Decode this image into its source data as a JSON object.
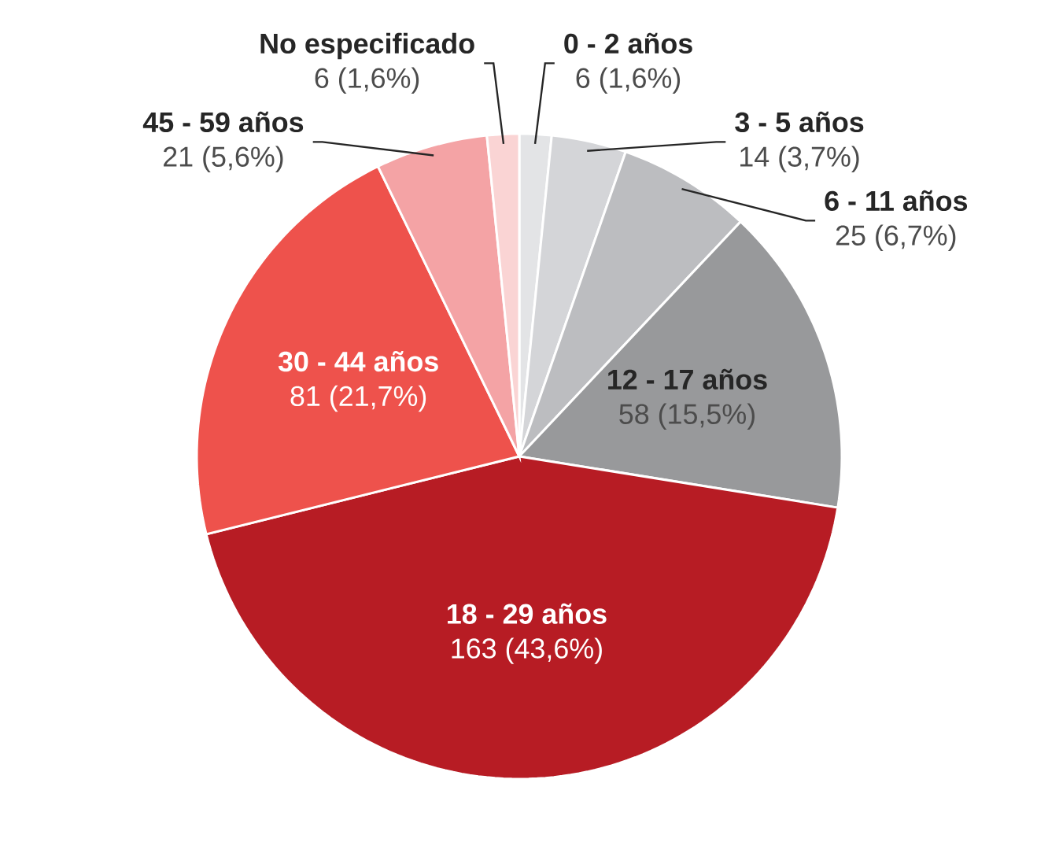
{
  "chart_data": {
    "type": "pie",
    "categories": [
      "0 - 2 años",
      "3 - 5 años",
      "6 - 11 años",
      "12 - 17 años",
      "18 - 29 años",
      "30 - 44 años",
      "45 - 59 años",
      "No especificado"
    ],
    "values": [
      6,
      14,
      25,
      58,
      163,
      81,
      21,
      6
    ],
    "colors": [
      "#e3e4e6",
      "#d4d5d8",
      "#bcbdc0",
      "#98999b",
      "#b71c24",
      "#ee524c",
      "#f4a3a5",
      "#fad4d4"
    ],
    "value_labels": [
      "6 (1,6%)",
      "14 (3,7%)",
      "25 (6,7%)",
      "58 (15,5%)",
      "163 (43,6%)",
      "81 (21,7%)",
      "21 (5,6%)",
      "6 (1,6%)"
    ]
  }
}
